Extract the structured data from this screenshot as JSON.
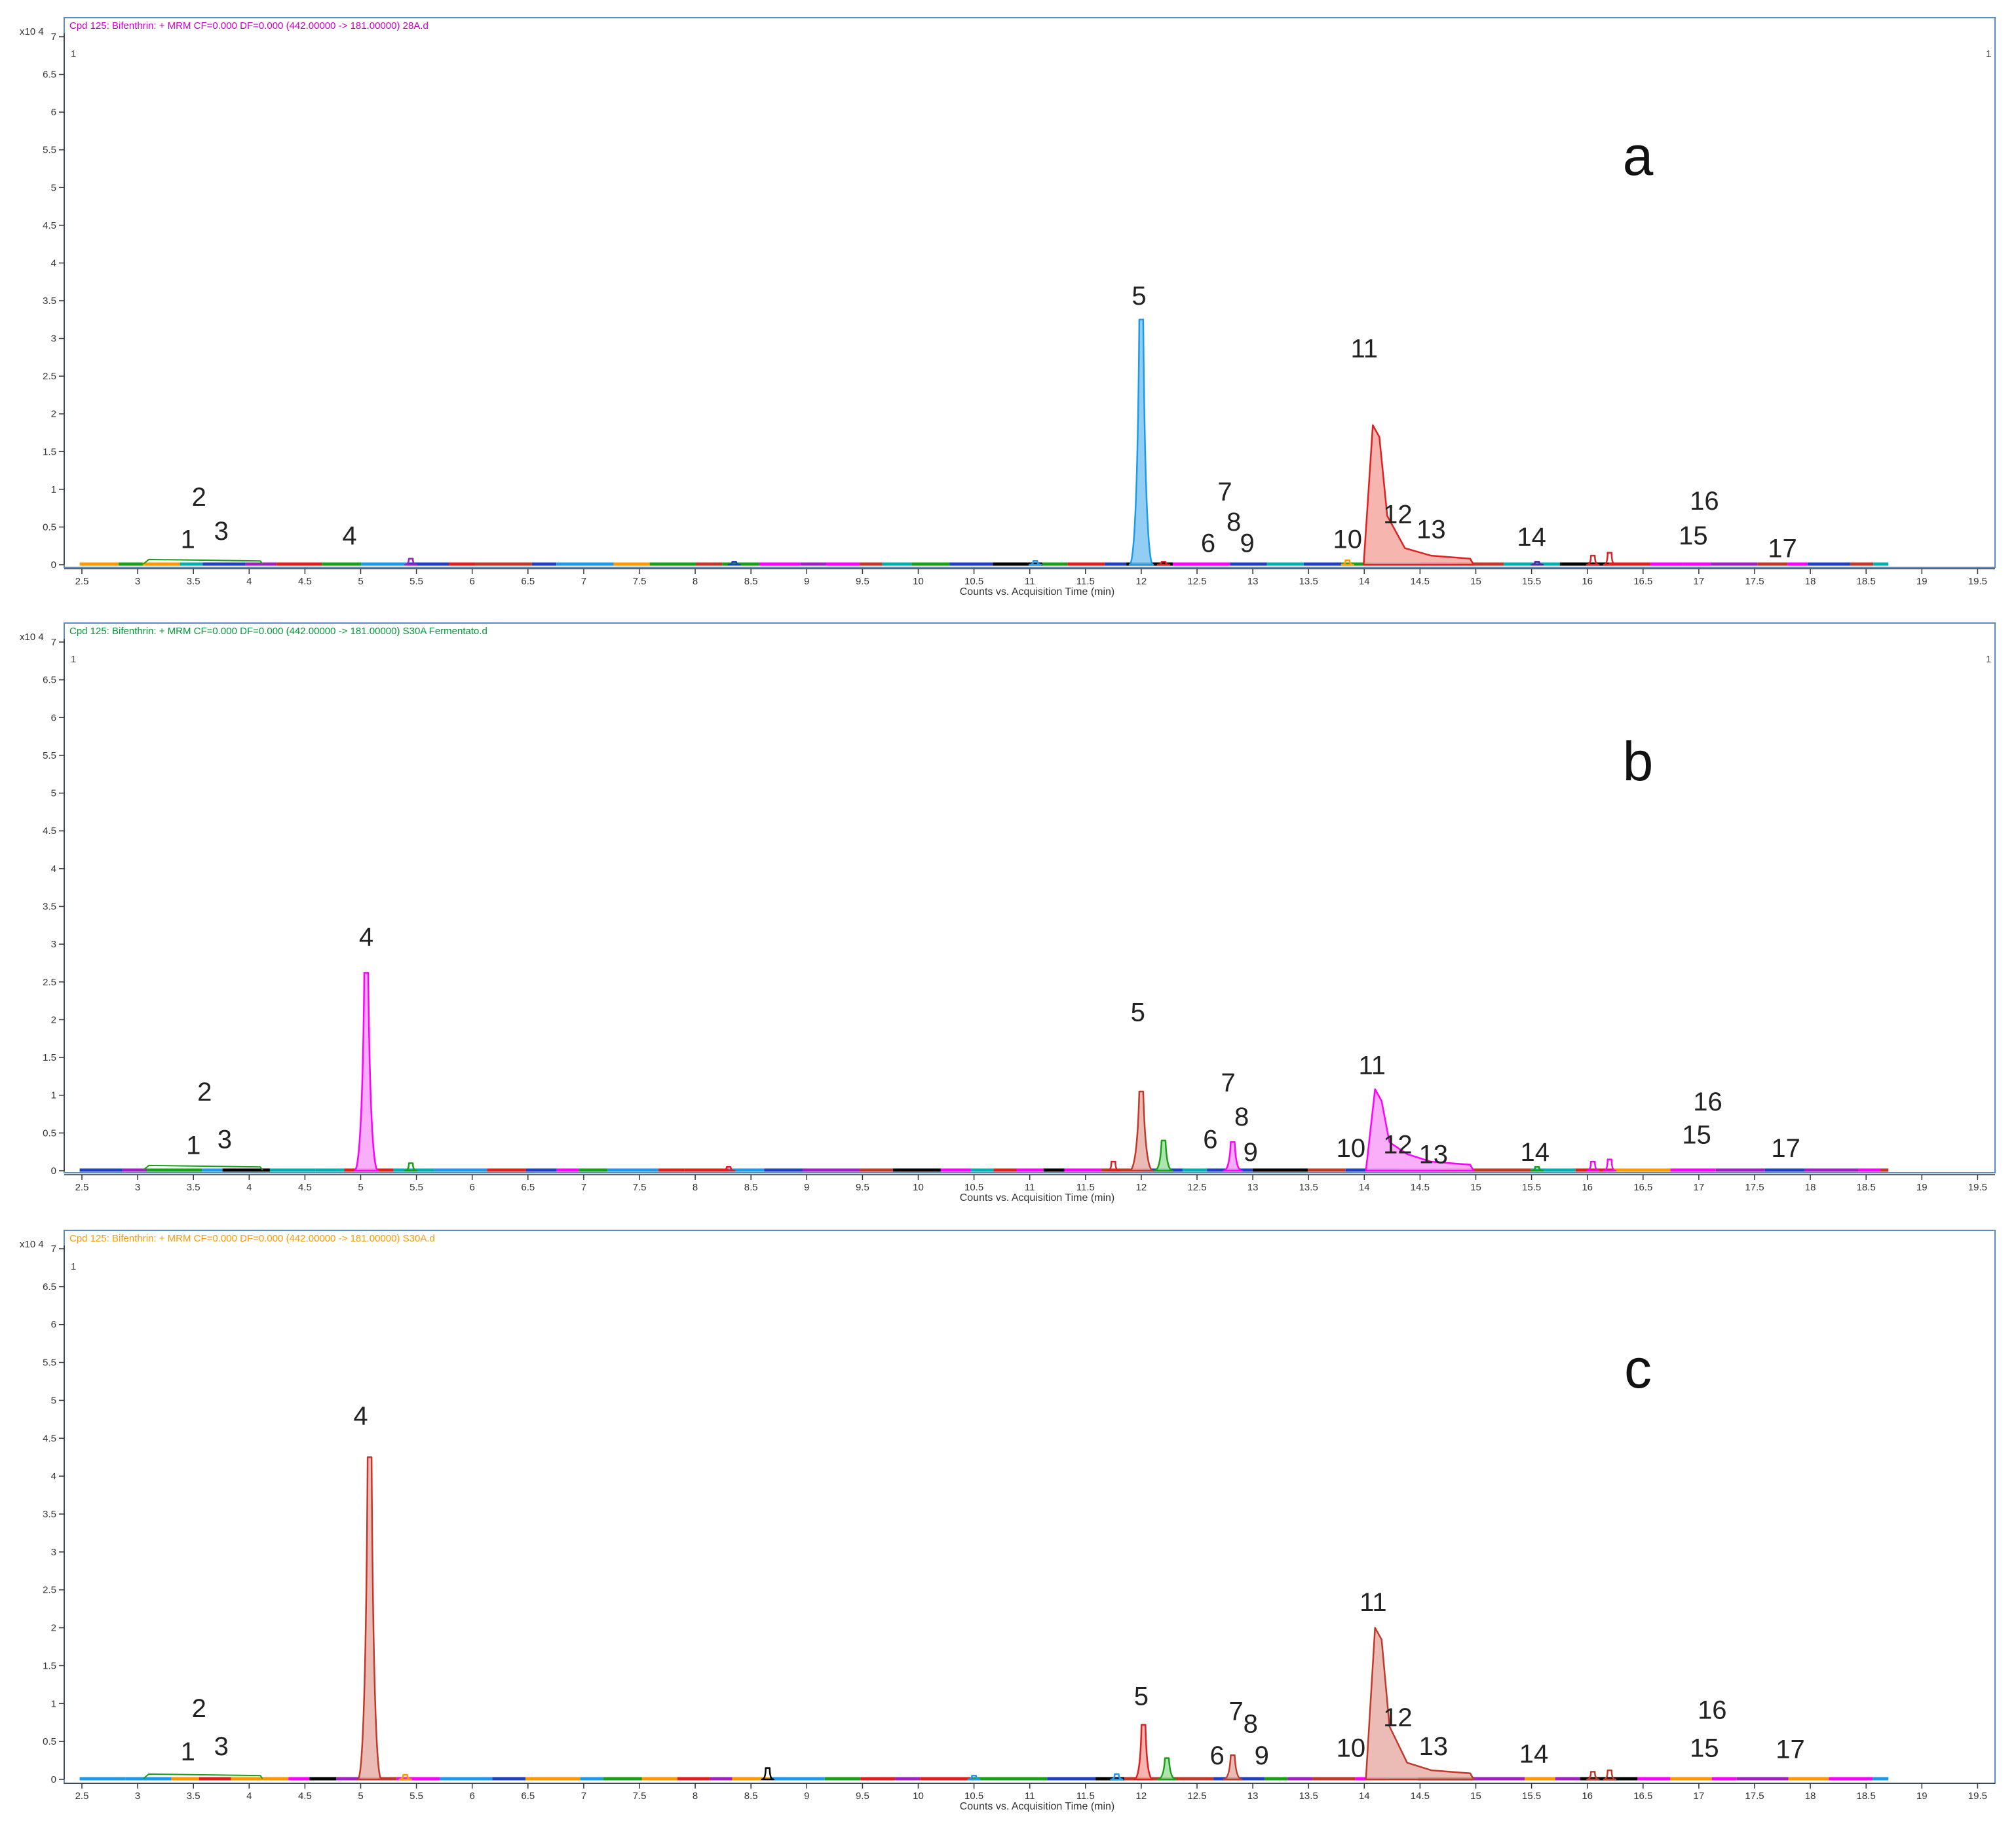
{
  "chart_data": [
    {
      "type": "line",
      "panel_letter": "a",
      "header": "Cpd 125: Bifenthrin: + MRM CF=0.000 DF=0.000 (442.00000 -> 181.00000) 28A.d",
      "header_color": "#cc00cc",
      "corner_left": "1",
      "corner_right": "1",
      "y_exponent_label": "x10 4",
      "xlabel": "Counts vs. Acquisition Time (min)",
      "xlim": [
        2.35,
        19.75
      ],
      "ylim": [
        0,
        7.2
      ],
      "x_ticks": [
        "2.5",
        "3",
        "3.5",
        "4",
        "4.5",
        "5",
        "5.5",
        "6",
        "6.5",
        "7",
        "7.5",
        "8",
        "8.5",
        "9",
        "9.5",
        "10",
        "10.5",
        "11",
        "11.5",
        "12",
        "12.5",
        "13",
        "13.5",
        "14",
        "14.5",
        "15",
        "15.5",
        "16",
        "16.5",
        "17",
        "17.5",
        "18",
        "18.5",
        "19",
        "19.5"
      ],
      "y_ticks": [
        "0",
        "0.5",
        "1",
        "1.5",
        "2",
        "2.5",
        "3",
        "3.5",
        "4",
        "4.5",
        "5",
        "5.5",
        "6",
        "6.5",
        "7"
      ],
      "peaks": [
        {
          "rt": 12.0,
          "height": 3.25,
          "color": "#1e9be8",
          "fill": "#7fc6f2"
        },
        {
          "rt": 14.1,
          "height": 1.85,
          "color": "#e02020",
          "fill": "#f4a8a0",
          "tail": true
        },
        {
          "rt": 5.45,
          "height": 0.08,
          "color": "#a020c0"
        },
        {
          "rt": 8.35,
          "height": 0.04,
          "color": "#2040c0"
        },
        {
          "rt": 11.05,
          "height": 0.05,
          "color": "#1e9be8"
        },
        {
          "rt": 12.2,
          "height": 0.04,
          "color": "#e02020"
        },
        {
          "rt": 13.85,
          "height": 0.06,
          "color": "#ff9900"
        },
        {
          "rt": 15.55,
          "height": 0.04,
          "color": "#6020a0"
        },
        {
          "rt": 16.05,
          "height": 0.12,
          "color": "#e02020"
        },
        {
          "rt": 16.2,
          "height": 0.16,
          "color": "#e02020"
        }
      ],
      "labels": [
        {
          "text": "1",
          "rt": 3.45,
          "y": 0.22
        },
        {
          "text": "2",
          "rt": 3.55,
          "y": 0.78
        },
        {
          "text": "3",
          "rt": 3.75,
          "y": 0.33
        },
        {
          "text": "4",
          "rt": 4.9,
          "y": 0.27
        },
        {
          "text": "5",
          "rt": 11.98,
          "y": 3.45
        },
        {
          "text": "6",
          "rt": 12.6,
          "y": 0.17
        },
        {
          "text": "7",
          "rt": 12.75,
          "y": 0.85
        },
        {
          "text": "8",
          "rt": 12.83,
          "y": 0.45
        },
        {
          "text": "9",
          "rt": 12.95,
          "y": 0.17
        },
        {
          "text": "10",
          "rt": 13.85,
          "y": 0.22
        },
        {
          "text": "11",
          "rt": 14.0,
          "y": 2.75
        },
        {
          "text": "12",
          "rt": 14.3,
          "y": 0.55
        },
        {
          "text": "13",
          "rt": 14.6,
          "y": 0.35
        },
        {
          "text": "14",
          "rt": 15.5,
          "y": 0.25
        },
        {
          "text": "15",
          "rt": 16.95,
          "y": 0.27
        },
        {
          "text": "16",
          "rt": 17.05,
          "y": 0.73
        },
        {
          "text": "17",
          "rt": 17.75,
          "y": 0.1
        }
      ]
    },
    {
      "type": "line",
      "panel_letter": "b",
      "header": "Cpd 125: Bifenthrin: + MRM CF=0.000 DF=0.000 (442.00000 -> 181.00000) S30A Fermentato.d",
      "header_color": "#009933",
      "corner_left": "1",
      "corner_right": "1",
      "y_exponent_label": "x10 4",
      "xlabel": "Counts vs. Acquisition Time (min)",
      "xlim": [
        2.35,
        19.75
      ],
      "ylim": [
        0,
        7.2
      ],
      "x_ticks": [
        "2.5",
        "3",
        "3.5",
        "4",
        "4.5",
        "5",
        "5.5",
        "6",
        "6.5",
        "7",
        "7.5",
        "8",
        "8.5",
        "9",
        "9.5",
        "10",
        "10.5",
        "11",
        "11.5",
        "12",
        "12.5",
        "13",
        "13.5",
        "14",
        "14.5",
        "15",
        "15.5",
        "16",
        "16.5",
        "17",
        "17.5",
        "18",
        "18.5",
        "19",
        "19.5"
      ],
      "y_ticks": [
        "0",
        "0.5",
        "1",
        "1.5",
        "2",
        "2.5",
        "3",
        "3.5",
        "4",
        "4.5",
        "5",
        "5.5",
        "6",
        "6.5",
        "7"
      ],
      "peaks": [
        {
          "rt": 5.05,
          "height": 2.62,
          "color": "#ff00ff",
          "fill": "#f8a0f8"
        },
        {
          "rt": 12.0,
          "height": 1.05,
          "color": "#c0392b",
          "fill": "#e8b0a8"
        },
        {
          "rt": 14.12,
          "height": 1.08,
          "color": "#ff00ff",
          "fill": "#f8a0f8",
          "tail": true
        },
        {
          "rt": 12.2,
          "height": 0.4,
          "color": "#18a018",
          "fill": "#a0e0a0"
        },
        {
          "rt": 12.82,
          "height": 0.38,
          "color": "#ff00ff",
          "fill": "#f8a0f8"
        },
        {
          "rt": 11.75,
          "height": 0.12,
          "color": "#e02020"
        },
        {
          "rt": 5.45,
          "height": 0.1,
          "color": "#18a018"
        },
        {
          "rt": 8.3,
          "height": 0.05,
          "color": "#e02020"
        },
        {
          "rt": 15.55,
          "height": 0.05,
          "color": "#18a018"
        },
        {
          "rt": 16.05,
          "height": 0.12,
          "color": "#ff00ff"
        },
        {
          "rt": 16.2,
          "height": 0.15,
          "color": "#ff00ff"
        }
      ],
      "labels": [
        {
          "text": "1",
          "rt": 3.5,
          "y": 0.22
        },
        {
          "text": "2",
          "rt": 3.6,
          "y": 0.93
        },
        {
          "text": "3",
          "rt": 3.78,
          "y": 0.3
        },
        {
          "text": "4",
          "rt": 5.05,
          "y": 2.98
        },
        {
          "text": "5",
          "rt": 11.97,
          "y": 1.98
        },
        {
          "text": "6",
          "rt": 12.62,
          "y": 0.3
        },
        {
          "text": "7",
          "rt": 12.78,
          "y": 1.05
        },
        {
          "text": "8",
          "rt": 12.9,
          "y": 0.6
        },
        {
          "text": "9",
          "rt": 12.98,
          "y": 0.13
        },
        {
          "text": "10",
          "rt": 13.88,
          "y": 0.18
        },
        {
          "text": "11",
          "rt": 14.07,
          "y": 1.28
        },
        {
          "text": "12",
          "rt": 14.3,
          "y": 0.23
        },
        {
          "text": "13",
          "rt": 14.62,
          "y": 0.1
        },
        {
          "text": "14",
          "rt": 15.53,
          "y": 0.13
        },
        {
          "text": "15",
          "rt": 16.98,
          "y": 0.36
        },
        {
          "text": "16",
          "rt": 17.08,
          "y": 0.8
        },
        {
          "text": "17",
          "rt": 17.78,
          "y": 0.18
        }
      ]
    },
    {
      "type": "line",
      "panel_letter": "c",
      "header": "Cpd 125: Bifenthrin: + MRM CF=0.000 DF=0.000 (442.00000 -> 181.00000) S30A.d",
      "header_color": "#ff9900",
      "corner_left": "1",
      "corner_right": "",
      "y_exponent_label": "x10 4",
      "xlabel": "Counts vs. Acquisition Time (min)",
      "xlim": [
        2.35,
        19.75
      ],
      "ylim": [
        0,
        7.2
      ],
      "x_ticks": [
        "2.5",
        "3",
        "3.5",
        "4",
        "4.5",
        "5",
        "5.5",
        "6",
        "6.5",
        "7",
        "7.5",
        "8",
        "8.5",
        "9",
        "9.5",
        "10",
        "10.5",
        "11",
        "11.5",
        "12",
        "12.5",
        "13",
        "13.5",
        "14",
        "14.5",
        "15",
        "15.5",
        "16",
        "16.5",
        "17",
        "17.5",
        "18",
        "18.5",
        "19",
        "19.5"
      ],
      "y_ticks": [
        "0",
        "0.5",
        "1",
        "1.5",
        "2",
        "2.5",
        "3",
        "3.5",
        "4",
        "4.5",
        "5",
        "5.5",
        "6",
        "6.5",
        "7"
      ],
      "peaks": [
        {
          "rt": 5.08,
          "height": 4.25,
          "color": "#c0392b",
          "fill": "#e8b0a8"
        },
        {
          "rt": 14.12,
          "height": 2.0,
          "color": "#c0392b",
          "fill": "#e8b0a8",
          "tail": true
        },
        {
          "rt": 12.02,
          "height": 0.72,
          "color": "#e02020",
          "fill": "#f4a8a0"
        },
        {
          "rt": 12.82,
          "height": 0.32,
          "color": "#c0392b",
          "fill": "#e8b0a8"
        },
        {
          "rt": 12.23,
          "height": 0.28,
          "color": "#18a018",
          "fill": "#a0e0a0"
        },
        {
          "rt": 8.65,
          "height": 0.15,
          "color": "#000000"
        },
        {
          "rt": 11.78,
          "height": 0.07,
          "color": "#1e9be8"
        },
        {
          "rt": 5.4,
          "height": 0.06,
          "color": "#ff9900"
        },
        {
          "rt": 10.5,
          "height": 0.05,
          "color": "#1e9be8"
        },
        {
          "rt": 16.05,
          "height": 0.1,
          "color": "#c0392b"
        },
        {
          "rt": 16.2,
          "height": 0.12,
          "color": "#c0392b"
        }
      ],
      "labels": [
        {
          "text": "1",
          "rt": 3.45,
          "y": 0.25
        },
        {
          "text": "2",
          "rt": 3.55,
          "y": 0.82
        },
        {
          "text": "3",
          "rt": 3.75,
          "y": 0.32
        },
        {
          "text": "4",
          "rt": 5.0,
          "y": 4.68
        },
        {
          "text": "5",
          "rt": 12.0,
          "y": 0.98
        },
        {
          "text": "6",
          "rt": 12.68,
          "y": 0.2
        },
        {
          "text": "7",
          "rt": 12.85,
          "y": 0.78
        },
        {
          "text": "8",
          "rt": 12.98,
          "y": 0.62
        },
        {
          "text": "9",
          "rt": 13.08,
          "y": 0.2
        },
        {
          "text": "10",
          "rt": 13.88,
          "y": 0.3
        },
        {
          "text": "11",
          "rt": 14.08,
          "y": 2.22
        },
        {
          "text": "12",
          "rt": 14.3,
          "y": 0.7
        },
        {
          "text": "13",
          "rt": 14.62,
          "y": 0.32
        },
        {
          "text": "14",
          "rt": 15.52,
          "y": 0.22
        },
        {
          "text": "15",
          "rt": 17.05,
          "y": 0.3
        },
        {
          "text": "16",
          "rt": 17.12,
          "y": 0.8
        },
        {
          "text": "17",
          "rt": 17.82,
          "y": 0.28
        }
      ]
    }
  ]
}
